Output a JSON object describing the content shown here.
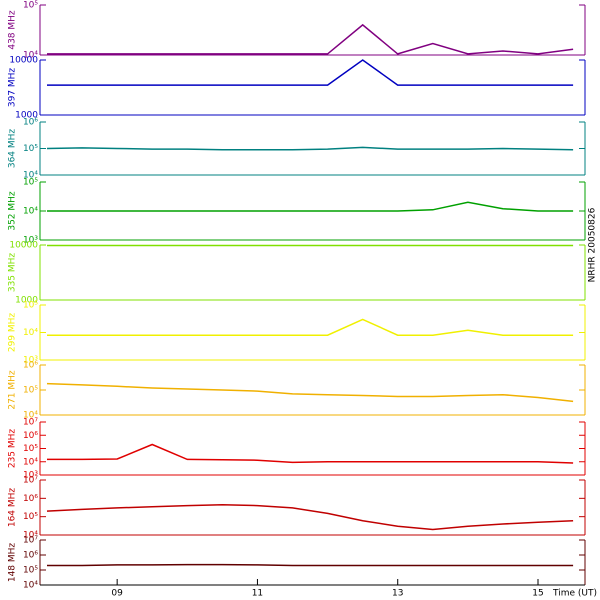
{
  "chart_data": [
    {
      "type": "line",
      "label": "438 MHz",
      "color": "#800080",
      "log_scale": true,
      "ylim": [
        10000,
        100000
      ],
      "yticks": [
        {
          "value": 10000,
          "label": "10⁴"
        },
        {
          "value": 100000,
          "label": "10⁵"
        }
      ],
      "x": [
        8,
        8.5,
        9,
        9.5,
        10,
        10.5,
        11,
        11.5,
        12,
        12.5,
        13,
        13.5,
        14,
        14.5,
        15,
        15.5
      ],
      "values": [
        10500,
        10500,
        10500,
        10500,
        10500,
        10500,
        10500,
        10500,
        10500,
        40000,
        10500,
        17000,
        10500,
        12000,
        10500,
        13000
      ]
    },
    {
      "type": "line",
      "label": "397 MHz",
      "color": "#0000c0",
      "log_scale": true,
      "ylim": [
        1000,
        10000
      ],
      "yticks": [
        1000,
        10000
      ],
      "x": [
        8,
        8.5,
        9,
        9.5,
        10,
        10.5,
        11,
        11.5,
        12,
        12.5,
        13,
        13.5,
        14,
        14.5,
        15,
        15.5
      ],
      "values": [
        3500,
        3500,
        3500,
        3500,
        3500,
        3500,
        3500,
        3500,
        3500,
        10000,
        3500,
        3500,
        3500,
        3500,
        3500,
        3500
      ]
    },
    {
      "type": "line",
      "label": "364 MHz",
      "color": "#008080",
      "log_scale": true,
      "ylim": [
        10000,
        1000000
      ],
      "yticks": [
        {
          "value": 10000,
          "label": "10⁴"
        },
        {
          "value": 100000,
          "label": "10⁵"
        },
        {
          "value": 1000000,
          "label": "10⁶"
        }
      ],
      "x": [
        8,
        8.5,
        9,
        9.5,
        10,
        10.5,
        11,
        11.5,
        12,
        12.5,
        13,
        13.5,
        14,
        14.5,
        15,
        15.5
      ],
      "values": [
        100000,
        105000,
        100000,
        95000,
        95000,
        90000,
        90000,
        90000,
        95000,
        110000,
        95000,
        95000,
        95000,
        100000,
        95000,
        90000
      ]
    },
    {
      "type": "line",
      "label": "352 MHz",
      "color": "#00a000",
      "log_scale": true,
      "ylim": [
        1000,
        100000
      ],
      "yticks": [
        {
          "value": 1000,
          "label": "10³"
        },
        {
          "value": 10000,
          "label": "10⁴"
        },
        {
          "value": 100000,
          "label": "10⁵"
        }
      ],
      "x": [
        8,
        8.5,
        9,
        9.5,
        10,
        10.5,
        11,
        11.5,
        12,
        12.5,
        13,
        13.5,
        14,
        14.5,
        15,
        15.5
      ],
      "values": [
        10000,
        10000,
        10000,
        10000,
        10000,
        10000,
        10000,
        10000,
        10000,
        10000,
        10000,
        11000,
        20000,
        12000,
        10000,
        10000
      ]
    },
    {
      "type": "line",
      "label": "335 MHz",
      "color": "#80e000",
      "log_scale": true,
      "ylim": [
        1000,
        10000
      ],
      "yticks": [
        1000,
        10000
      ],
      "x": [
        8,
        8.5,
        9,
        9.5,
        10,
        10.5,
        11,
        11.5,
        12,
        12.5,
        13,
        13.5,
        14,
        14.5,
        15,
        15.5
      ],
      "values": [
        9800,
        9800,
        9800,
        9800,
        9800,
        9800,
        9800,
        9800,
        9800,
        9800,
        9800,
        9800,
        9800,
        9800,
        9800,
        9800
      ]
    },
    {
      "type": "line",
      "label": "299 MHz",
      "color": "#f0f000",
      "log_scale": true,
      "ylim": [
        1000,
        100000
      ],
      "yticks": [
        {
          "value": 1000,
          "label": "10³"
        },
        {
          "value": 10000,
          "label": "10⁴"
        },
        {
          "value": 100000,
          "label": "10⁵"
        }
      ],
      "x": [
        8,
        8.5,
        9,
        9.5,
        10,
        10.5,
        11,
        11.5,
        12,
        12.5,
        13,
        13.5,
        14,
        14.5,
        15,
        15.5
      ],
      "values": [
        8000,
        8000,
        8000,
        8000,
        8000,
        8000,
        8000,
        8000,
        8000,
        30000,
        8000,
        8000,
        12000,
        8000,
        8000,
        8000
      ]
    },
    {
      "type": "line",
      "label": "271 MHz",
      "color": "#f0b000",
      "log_scale": true,
      "ylim": [
        10000,
        1000000
      ],
      "yticks": [
        {
          "value": 10000,
          "label": "10⁴"
        },
        {
          "value": 100000,
          "label": "10⁵"
        },
        {
          "value": 1000000,
          "label": "10⁶"
        }
      ],
      "x": [
        8,
        8.5,
        9,
        9.5,
        10,
        10.5,
        11,
        11.5,
        12,
        12.5,
        13,
        13.5,
        14,
        14.5,
        15,
        15.5
      ],
      "values": [
        180000,
        160000,
        140000,
        120000,
        110000,
        100000,
        90000,
        70000,
        65000,
        60000,
        55000,
        55000,
        60000,
        65000,
        50000,
        35000
      ]
    },
    {
      "type": "line",
      "label": "235 MHz",
      "color": "#e00000",
      "log_scale": true,
      "ylim": [
        1000,
        10000000
      ],
      "yticks": [
        {
          "value": 1000,
          "label": "10³"
        },
        {
          "value": 10000,
          "label": "10⁴"
        },
        {
          "value": 100000,
          "label": "10⁵"
        },
        {
          "value": 1000000,
          "label": "10⁶"
        },
        {
          "value": 10000000,
          "label": "10⁷"
        }
      ],
      "x": [
        8,
        8.5,
        9,
        9.5,
        10,
        10.5,
        11,
        11.5,
        12,
        12.5,
        13,
        13.5,
        14,
        14.5,
        15,
        15.5
      ],
      "values": [
        15000,
        15000,
        16000,
        200000,
        15000,
        14000,
        13000,
        9000,
        10000,
        10000,
        10000,
        10000,
        10000,
        10000,
        10000,
        8000
      ]
    },
    {
      "type": "line",
      "label": "164 MHz",
      "color": "#c00000",
      "log_scale": true,
      "ylim": [
        10000,
        10000000
      ],
      "yticks": [
        {
          "value": 10000,
          "label": "10⁴"
        },
        {
          "value": 100000,
          "label": "10⁵"
        },
        {
          "value": 1000000,
          "label": "10⁶"
        },
        {
          "value": 10000000,
          "label": "10⁷"
        }
      ],
      "x": [
        8,
        8.5,
        9,
        9.5,
        10,
        10.5,
        11,
        11.5,
        12,
        12.5,
        13,
        13.5,
        14,
        14.5,
        15,
        15.5
      ],
      "values": [
        200000,
        250000,
        300000,
        350000,
        400000,
        450000,
        400000,
        300000,
        150000,
        60000,
        30000,
        20000,
        30000,
        40000,
        50000,
        60000
      ]
    },
    {
      "type": "line",
      "label": "148 MHz",
      "color": "#600000",
      "log_scale": true,
      "ylim": [
        10000,
        10000000
      ],
      "yticks": [
        {
          "value": 10000,
          "label": "10⁴"
        },
        {
          "value": 100000,
          "label": "10⁵"
        },
        {
          "value": 1000000,
          "label": "10⁶"
        },
        {
          "value": 10000000,
          "label": "10⁷"
        }
      ],
      "x": [
        8,
        8.5,
        9,
        9.5,
        10,
        10.5,
        11,
        11.5,
        12,
        12.5,
        13,
        13.5,
        14,
        14.5,
        15,
        15.5
      ],
      "values": [
        200000,
        200000,
        220000,
        220000,
        230000,
        230000,
        220000,
        200000,
        200000,
        200000,
        200000,
        200000,
        200000,
        200000,
        200000,
        200000
      ],
      "xlim": [
        7.9,
        15.67
      ],
      "xticks": [
        {
          "value": 9,
          "label": "09"
        },
        {
          "value": 11,
          "label": "11"
        },
        {
          "value": 13,
          "label": "13"
        },
        {
          "value": 15,
          "label": "15"
        }
      ],
      "xlabel": "Time (UT)",
      "annotation": "NRHR 20050826"
    }
  ]
}
